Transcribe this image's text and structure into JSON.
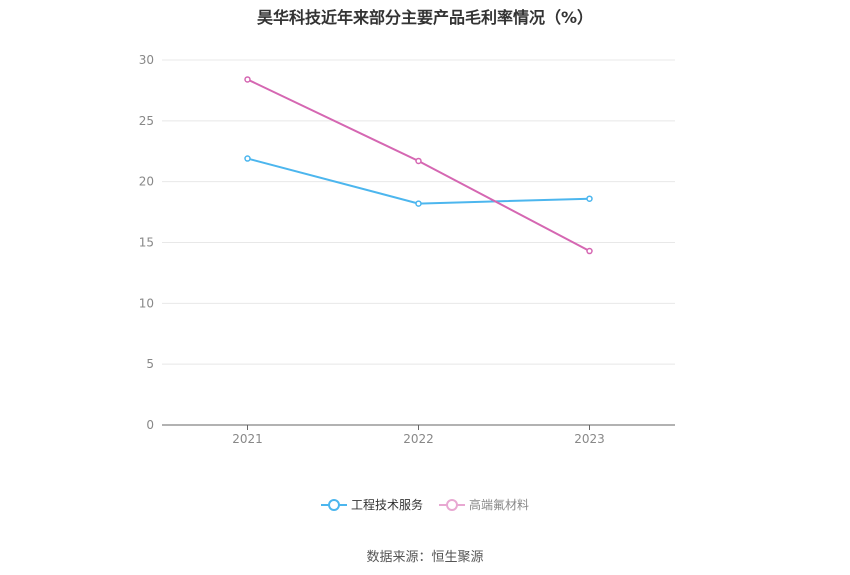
{
  "chart_data": {
    "type": "line",
    "title": "昊华科技近年来部分主要产品毛利率情况（%）",
    "categories": [
      "2021",
      "2022",
      "2023"
    ],
    "series": [
      {
        "name": "工程技术服务",
        "values": [
          21.9,
          18.2,
          18.6
        ],
        "color": "#4cb6ee"
      },
      {
        "name": "高端氟材料",
        "values": [
          28.4,
          21.7,
          14.3
        ],
        "color": "#d567b2"
      }
    ],
    "ylim": [
      0,
      30
    ],
    "yticks": [
      "0",
      "5",
      "10",
      "15",
      "20",
      "25",
      "30"
    ],
    "grid": true,
    "legend_position": "bottom",
    "legend_inactive_color": "#e8a8d2"
  },
  "source": "数据来源：恒生聚源"
}
